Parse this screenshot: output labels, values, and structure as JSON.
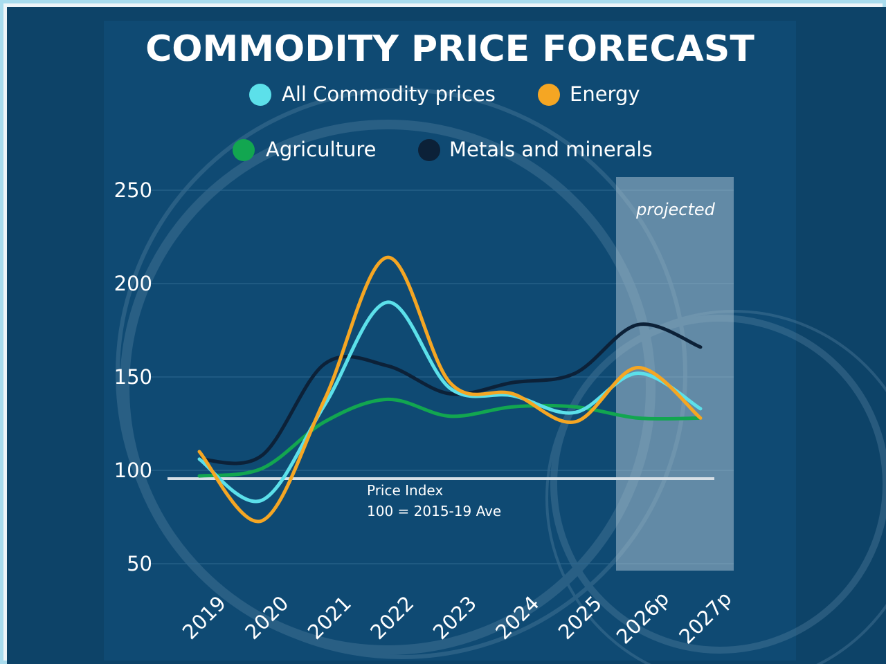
{
  "chart_data": {
    "type": "line",
    "title": "COMMODITY PRICE FORECAST",
    "categories": [
      "2019",
      "2020",
      "2021",
      "2022",
      "2023",
      "2024",
      "2025",
      "2026p",
      "2027p"
    ],
    "ylim": [
      50,
      250
    ],
    "yticks": [
      "250",
      "200",
      "150",
      "100",
      "50"
    ],
    "grid": true,
    "legend_position": "top",
    "series": [
      {
        "name": "All Commodity prices",
        "color": "#5ce0ea",
        "values": [
          106,
          84,
          135,
          190,
          144,
          140,
          131,
          152,
          133
        ]
      },
      {
        "name": "Energy",
        "color": "#f5a623",
        "values": [
          110,
          73,
          138,
          214,
          147,
          141,
          126,
          155,
          128
        ]
      },
      {
        "name": "Agriculture",
        "color": "#12a650",
        "values": [
          97,
          101,
          126,
          138,
          129,
          134,
          134,
          128,
          128
        ]
      },
      {
        "name": "Metals and minerals",
        "color": "#0c2138",
        "values": [
          106,
          108,
          157,
          156,
          141,
          147,
          152,
          178,
          166
        ]
      }
    ],
    "reference_line": {
      "value": 96,
      "label_line1": "Price Index",
      "label_line2": "100 =  2015-19 Ave"
    },
    "projected_label": "projected",
    "projected_from": "2026p"
  }
}
